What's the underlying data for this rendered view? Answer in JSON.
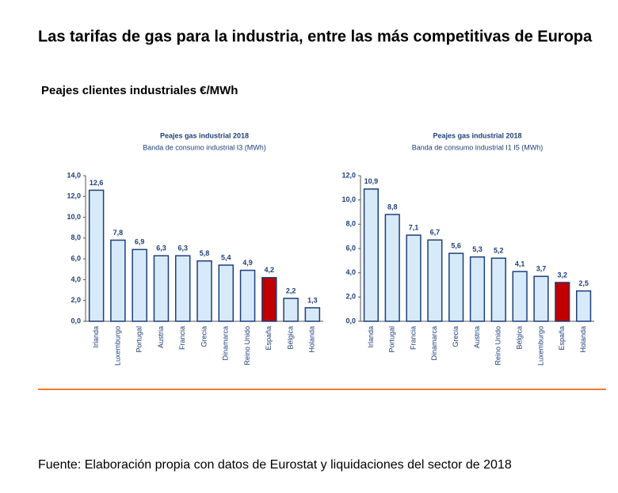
{
  "title": "Las tarifas de gas para la industria, entre las más competitivas de Europa",
  "subtitle": "Peajes clientes industriales €/MWh",
  "source": "Fuente: Elaboración propia con datos de Eurostat y liquidaciones del sector de 2018",
  "chart_data": [
    {
      "type": "bar",
      "title": "Peajes gas industrial 2018",
      "subtitle": "Banda de consumo industrial I3 (MWh)",
      "categories": [
        "Irlanda",
        "Luxemburgo",
        "Portugal",
        "Austria",
        "Francia",
        "Grecia",
        "Dinamarca",
        "Reino Unido",
        "España",
        "Bélgica",
        "Holanda"
      ],
      "values": [
        12.6,
        7.8,
        6.9,
        6.3,
        6.3,
        5.8,
        5.4,
        4.9,
        4.2,
        2.2,
        1.3
      ],
      "value_labels": [
        "12,6",
        "7,8",
        "6,9",
        "6,3",
        "6,3",
        "5,8",
        "5,4",
        "4,9",
        "4,2",
        "2,2",
        "1,3"
      ],
      "colors": [
        "#d6eafa",
        "#d6eafa",
        "#d6eafa",
        "#d6eafa",
        "#d6eafa",
        "#d6eafa",
        "#d6eafa",
        "#d6eafa",
        "#c00000",
        "#d6eafa",
        "#d6eafa"
      ],
      "edge_color": "#1f3f7a",
      "ylim": [
        0,
        14
      ],
      "yticks": [
        {
          "value": 0,
          "label": "0,0"
        },
        {
          "value": 2,
          "label": "2,0"
        },
        {
          "value": 4,
          "label": "4,0"
        },
        {
          "value": 6,
          "label": "6,0"
        },
        {
          "value": 8,
          "label": "8,0"
        },
        {
          "value": 10,
          "label": "10,0"
        },
        {
          "value": 12,
          "label": "12,0"
        },
        {
          "value": 14,
          "label": "14,0"
        }
      ]
    },
    {
      "type": "bar",
      "title": "Peajes gas industrial 2018",
      "subtitle": "Banda de consumo industrial I1 I5 (MWh)",
      "categories": [
        "Irlanda",
        "Portugal",
        "Francia",
        "Dinamarca",
        "Grecia",
        "Austria",
        "Reino Unido",
        "Bélgica",
        "Luxemburgo",
        "España",
        "Holanda"
      ],
      "values": [
        10.9,
        8.8,
        7.1,
        6.7,
        5.6,
        5.3,
        5.2,
        4.1,
        3.7,
        3.2,
        2.5
      ],
      "value_labels": [
        "10,9",
        "8,8",
        "7,1",
        "6,7",
        "5,6",
        "5,3",
        "5,2",
        "4,1",
        "3,7",
        "3,2",
        "2,5"
      ],
      "colors": [
        "#d6eafa",
        "#d6eafa",
        "#d6eafa",
        "#d6eafa",
        "#d6eafa",
        "#d6eafa",
        "#d6eafa",
        "#d6eafa",
        "#d6eafa",
        "#c00000",
        "#d6eafa"
      ],
      "edge_color": "#1f3f7a",
      "ylim": [
        0,
        12
      ],
      "yticks": [
        {
          "value": 0,
          "label": "0,0"
        },
        {
          "value": 2,
          "label": "2,0"
        },
        {
          "value": 4,
          "label": "4,0"
        },
        {
          "value": 6,
          "label": "6,0"
        },
        {
          "value": 8,
          "label": "8,0"
        },
        {
          "value": 10,
          "label": "10,0"
        },
        {
          "value": 12,
          "label": "12,0"
        }
      ]
    }
  ]
}
